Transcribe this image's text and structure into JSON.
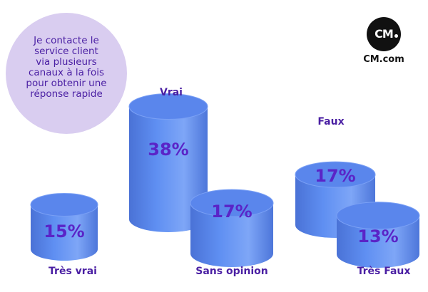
{
  "bubble": {
    "lines": [
      "Je contacte le",
      "service client",
      "via plusieurs",
      "canaux à la fois",
      "pour obtenir une",
      "réponse rapide"
    ]
  },
  "logo": {
    "mark": "CM",
    "name": "CM.com"
  },
  "colors": {
    "cylinder_body": "#5f8ff2",
    "cylinder_top": "#5a86ec",
    "label": "#4a1fa3",
    "value": "#5a24c7",
    "bubble": "#d9cdf0"
  },
  "chart_data": {
    "type": "bar",
    "title": "",
    "categories": [
      "Très vrai",
      "Vrai",
      "Sans opinion",
      "Faux",
      "Très Faux"
    ],
    "values": [
      15,
      38,
      17,
      17,
      13
    ],
    "value_labels": [
      "15%",
      "38%",
      "17%",
      "17%",
      "13%"
    ],
    "unit": "%"
  }
}
